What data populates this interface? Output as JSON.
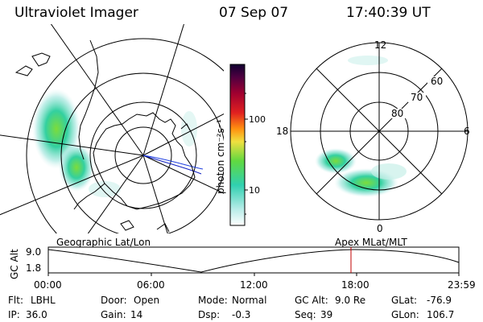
{
  "header": {
    "instrument": "Ultraviolet Imager",
    "date": "07 Sep 07",
    "time": "17:40:39 UT"
  },
  "colorbar": {
    "label": "photon cm⁻²s⁻¹",
    "ticks": [
      "100",
      "10"
    ]
  },
  "polar_plot": {
    "mlt_labels": {
      "top": "12",
      "left": "18",
      "right": "6",
      "bottom": "0"
    },
    "lat_labels": [
      "60",
      "70",
      "80"
    ]
  },
  "timeline": {
    "left_title": "Geographic Lat/Lon",
    "right_title": "Apex MLat/MLT",
    "y_axis_label": "GC Alt",
    "y_ticks": [
      "9.0",
      "1.8"
    ],
    "x_ticks": [
      "00:00",
      "06:00",
      "12:00",
      "18:00",
      "23:59"
    ],
    "cursor_time": "17:40:39",
    "cursor_color": "#c00000"
  },
  "footer": {
    "row1": [
      {
        "label": "Flt:",
        "value": "LBHL"
      },
      {
        "label": "Door:",
        "value": "Open"
      },
      {
        "label": "Mode:",
        "value": "Normal"
      },
      {
        "label": "GC Alt:",
        "value": "9.0 Re"
      },
      {
        "label": "GLat:",
        "value": "-76.9"
      }
    ],
    "row2": [
      {
        "label": "IP:",
        "value": "36.0"
      },
      {
        "label": "Gain:",
        "value": "14"
      },
      {
        "label": "Dsp:",
        "value": "-0.3"
      },
      {
        "label": "Seq:",
        "value": "39"
      },
      {
        "label": "GLon:",
        "value": "106.7"
      }
    ]
  }
}
